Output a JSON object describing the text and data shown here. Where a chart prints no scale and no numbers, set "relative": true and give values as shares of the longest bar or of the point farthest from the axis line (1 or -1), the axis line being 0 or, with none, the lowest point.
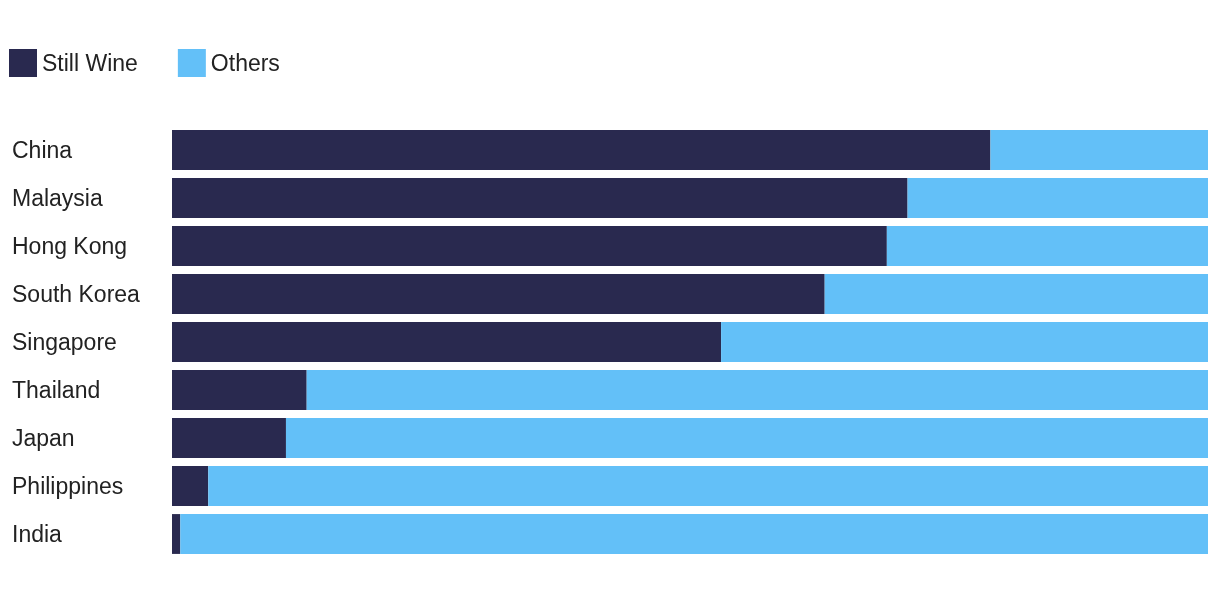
{
  "chart_data": {
    "type": "bar",
    "orientation": "horizontal",
    "stacked": true,
    "relative": true,
    "legend": "top left",
    "categories": [
      "China",
      "Malaysia",
      "Hong Kong",
      "South Korea",
      "Singapore",
      "Thailand",
      "Japan",
      "Philippines",
      "India"
    ],
    "series": [
      {
        "name": "Still Wine",
        "color": "#29294f",
        "values": [
          0.79,
          0.71,
          0.69,
          0.63,
          0.53,
          0.13,
          0.11,
          0.035,
          0.008
        ]
      },
      {
        "name": "Others",
        "color": "#63c0f8",
        "values": [
          0.21,
          0.29,
          0.31,
          0.37,
          0.47,
          0.87,
          0.89,
          0.965,
          0.992
        ]
      }
    ]
  }
}
